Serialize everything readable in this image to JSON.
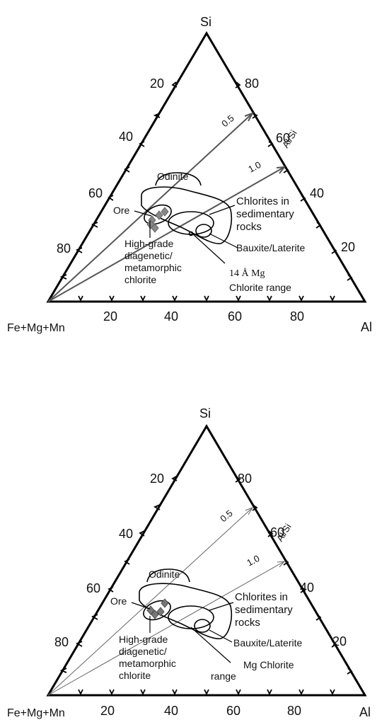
{
  "diagrams": [
    {
      "vertices": {
        "top": "Si",
        "left": "Fe+Mg+Mn",
        "right": "Al"
      },
      "left_edge_ticks": [
        "20",
        "40",
        "60",
        "80"
      ],
      "right_edge_ticks": [
        "80",
        "60",
        "40",
        "20"
      ],
      "bottom_edge_ticks": [
        "20",
        "40",
        "60",
        "80"
      ],
      "ratio_lines": [
        {
          "label": "0.5"
        },
        {
          "label": "1.0"
        }
      ],
      "ratio_axis_label": "Al/Si",
      "labels": {
        "odinite": "Odinite",
        "ore": "Ore",
        "sedimentary_1": "Chlorites in",
        "sedimentary_2": "sedimentary",
        "sedimentary_3": "rocks",
        "bauxite": "Bauxite/Laterite",
        "hg_1": "High-grade",
        "hg_2": "diagenetic/",
        "hg_3": "metamorphic",
        "hg_4": "chlorite",
        "mg_1": "14 Å  Mg",
        "mg_2": "Chlorite range"
      }
    },
    {
      "vertices": {
        "top": "Si",
        "left": "Fe+Mg+Mn",
        "right": "Al"
      },
      "left_edge_ticks": [
        "20",
        "40",
        "60",
        "80"
      ],
      "right_edge_ticks": [
        "80",
        "60",
        "40",
        "20"
      ],
      "bottom_edge_ticks": [
        "20",
        "40",
        "60",
        "80"
      ],
      "ratio_lines": [
        {
          "label": "0.5"
        },
        {
          "label": "1.0"
        }
      ],
      "ratio_axis_label": "Al/Si",
      "labels": {
        "odinite": "Odinite",
        "ore": "Ore",
        "sedimentary_1": "Chlorites in",
        "sedimentary_2": "sedimentary",
        "sedimentary_3": "rocks",
        "bauxite": "Bauxite/Laterite",
        "hg_1": "High-grade",
        "hg_2": "diagenetic/",
        "hg_3": "metamorphic",
        "hg_4": "chlorite",
        "mg_1": "Mg Chlorite",
        "mg_2": "range"
      }
    }
  ]
}
